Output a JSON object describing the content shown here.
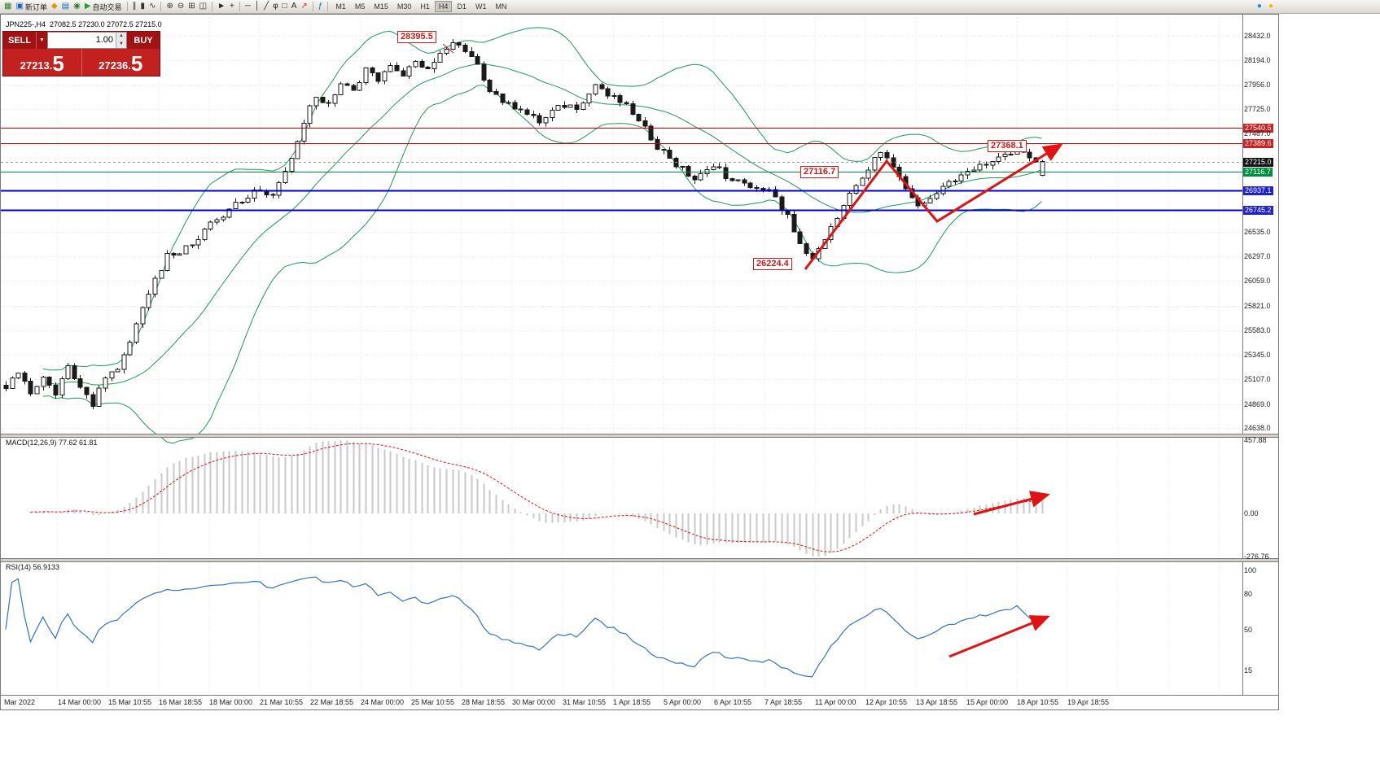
{
  "toolbar": {
    "items": [
      {
        "name": "new-chart-icon",
        "glyph": "▦",
        "color": "#2e7d32"
      },
      {
        "name": "new-order-button",
        "glyph": "▣",
        "color": "#1565c0",
        "label": "新订单"
      },
      {
        "name": "market-watch-icon",
        "glyph": "◆",
        "color": "#d69b00"
      },
      {
        "name": "data-window-icon",
        "glyph": "▤",
        "color": "#1565c0"
      },
      {
        "name": "strategy-tester-icon",
        "glyph": "◉",
        "color": "#2e7d32"
      },
      {
        "name": "auto-trading-button",
        "glyph": "▶",
        "color": "#21a038",
        "label": "自动交易"
      },
      {
        "type": "sep"
      },
      {
        "name": "chart-bars-icon",
        "glyph": "∥",
        "color": "#333333"
      },
      {
        "name": "chart-candles-icon",
        "glyph": "▮",
        "color": "#333333"
      },
      {
        "name": "chart-line-icon",
        "glyph": "∿",
        "color": "#333333"
      },
      {
        "type": "sep"
      },
      {
        "name": "zoom-in-icon",
        "glyph": "⊕",
        "color": "#333333"
      },
      {
        "name": "zoom-out-icon",
        "glyph": "⊖",
        "color": "#333333"
      },
      {
        "name": "tile-windows-icon",
        "glyph": "⊞",
        "color": "#333333"
      },
      {
        "name": "cascade-windows-icon",
        "glyph": "◫",
        "color": "#333333"
      },
      {
        "type": "sep"
      },
      {
        "name": "cursor-icon",
        "glyph": "►",
        "color": "#222222"
      },
      {
        "name": "crosshair-icon",
        "glyph": "+",
        "color": "#222222"
      },
      {
        "type": "sep"
      },
      {
        "name": "hline-icon",
        "glyph": "─",
        "color": "#222222"
      },
      {
        "name": "vline-icon",
        "glyph": "│",
        "color": "#222222"
      },
      {
        "name": "trendline-icon",
        "glyph": "╱",
        "color": "#222222"
      },
      {
        "name": "fibonacci-icon",
        "glyph": "φ",
        "color": "#222222"
      },
      {
        "name": "shapes-icon",
        "glyph": "□",
        "color": "#222222"
      },
      {
        "name": "text-icon",
        "glyph": "A",
        "color": "#222222"
      },
      {
        "name": "arrows-icon",
        "glyph": "↗",
        "color": "#cc2222"
      },
      {
        "type": "sep"
      },
      {
        "name": "indicators-icon",
        "glyph": "ƒ",
        "color": "#1565c0"
      },
      {
        "type": "sep"
      }
    ],
    "timeframes": [
      "M1",
      "M5",
      "M15",
      "M30",
      "H1",
      "H4",
      "D1",
      "W1",
      "MN"
    ],
    "active_timeframe": "H4",
    "right_icons": [
      {
        "name": "community-icon",
        "glyph": "●",
        "color": "#1e88e5"
      },
      {
        "name": "alerts-icon",
        "glyph": "●",
        "color": "#f2b705"
      }
    ]
  },
  "chart_header": {
    "symbol": "JPN225-,H4",
    "ohlc": "27082.5 27230.0 27072.5 27215.0"
  },
  "trade_panel": {
    "sell_label": "SELL",
    "buy_label": "BUY",
    "volume": "1.00",
    "dropdown_glyph": "▼",
    "spinner_up": "▲",
    "spinner_down": "▼",
    "sell_price_small": "27213.",
    "sell_price_big": "5",
    "buy_price_small": "27236.",
    "buy_price_big": "5"
  },
  "price_axis": {
    "ticks": [
      {
        "text": "28432.0",
        "style": "plain"
      },
      {
        "text": "28194.0",
        "style": "plain"
      },
      {
        "text": "27956.0",
        "style": "plain"
      },
      {
        "text": "27725.0",
        "style": "plain"
      },
      {
        "text": "27540.5",
        "style": "red"
      },
      {
        "text": "27487.0",
        "style": "plain"
      },
      {
        "text": "27389.6",
        "style": "red"
      },
      {
        "text": "27215.0",
        "style": "current"
      },
      {
        "text": "27116.7",
        "style": "green"
      },
      {
        "text": "26937.1",
        "style": "blue"
      },
      {
        "text": "26745.2",
        "style": "blue"
      },
      {
        "text": "26535.0",
        "style": "plain"
      },
      {
        "text": "26297.0",
        "style": "plain"
      },
      {
        "text": "26059.0",
        "style": "plain"
      },
      {
        "text": "25821.0",
        "style": "plain"
      },
      {
        "text": "25583.0",
        "style": "plain"
      },
      {
        "text": "25345.0",
        "style": "plain"
      },
      {
        "text": "25107.0",
        "style": "plain"
      },
      {
        "text": "24869.0",
        "style": "plain"
      },
      {
        "text": "24638.0",
        "style": "plain"
      }
    ]
  },
  "macd": {
    "label": "MACD(12,26,9) 77.62 61.81",
    "axis": [
      "457.88",
      "0.00",
      "-276.76"
    ]
  },
  "rsi": {
    "label": "RSI(14) 56.9133",
    "axis": [
      "100",
      "80",
      "50",
      "15"
    ]
  },
  "chart_data": {
    "type": "candlestick",
    "symbol": "JPN225-",
    "timeframe": "H4",
    "title": "JPN225-,H4",
    "last_ohlc": {
      "open": 27082.5,
      "high": 27230.0,
      "low": 27072.5,
      "close": 27215.0
    },
    "current_price": 27215.0,
    "y_range": [
      24638.0,
      28432.0
    ],
    "x_tick_labels": [
      "Mar 2022",
      "14 Mar 00:00",
      "15 Mar 10:55",
      "16 Mar 18:55",
      "18 Mar 00:00",
      "21 Mar 10:55",
      "22 Mar 18:55",
      "24 Mar 00:00",
      "25 Mar 10:55",
      "28 Mar 18:55",
      "30 Mar 00:00",
      "31 Mar 10:55",
      "1 Apr 18:55",
      "5 Apr 00:00",
      "6 Apr 10:55",
      "7 Apr 18:55",
      "11 Apr 00:00",
      "12 Apr 10:55",
      "13 Apr 18:55",
      "15 Apr 00:00",
      "18 Apr 10:55",
      "19 Apr 18:55"
    ],
    "levels": [
      {
        "price": 27540.5,
        "color": "#cc0000",
        "width": 1
      },
      {
        "price": 27389.6,
        "color": "#cc0000",
        "width": 1
      },
      {
        "price": 27116.7,
        "color": "#00913f",
        "width": 1
      },
      {
        "price": 26937.1,
        "color": "#0000cc",
        "width": 2
      },
      {
        "price": 26745.2,
        "color": "#0000cc",
        "width": 2
      }
    ],
    "bollinger": {
      "period": 20,
      "deviation": 2,
      "color": "#1f9a58"
    },
    "candles": {
      "count": 168,
      "price_waypoints": [
        [
          0,
          25050
        ],
        [
          2,
          25200
        ],
        [
          4,
          24950
        ],
        [
          6,
          25150
        ],
        [
          8,
          24980
        ],
        [
          10,
          25220
        ],
        [
          12,
          25060
        ],
        [
          14,
          24870
        ],
        [
          16,
          25120
        ],
        [
          18,
          25230
        ],
        [
          20,
          25500
        ],
        [
          23,
          25950
        ],
        [
          26,
          26300
        ],
        [
          29,
          26380
        ],
        [
          32,
          26550
        ],
        [
          35,
          26700
        ],
        [
          38,
          26850
        ],
        [
          41,
          26950
        ],
        [
          43,
          26900
        ],
        [
          46,
          27250
        ],
        [
          48,
          27600
        ],
        [
          50,
          27850
        ],
        [
          52,
          27750
        ],
        [
          54,
          27950
        ],
        [
          56,
          27900
        ],
        [
          58,
          28100
        ],
        [
          60,
          28000
        ],
        [
          62,
          28120
        ],
        [
          64,
          28060
        ],
        [
          66,
          28180
        ],
        [
          68,
          28120
        ],
        [
          70,
          28250
        ],
        [
          72,
          28380
        ],
        [
          74,
          28300
        ],
        [
          76,
          28150
        ],
        [
          78,
          27900
        ],
        [
          80,
          27780
        ],
        [
          83,
          27700
        ],
        [
          86,
          27620
        ],
        [
          89,
          27780
        ],
        [
          92,
          27720
        ],
        [
          95,
          27930
        ],
        [
          97,
          27870
        ],
        [
          100,
          27760
        ],
        [
          103,
          27550
        ],
        [
          105,
          27350
        ],
        [
          108,
          27180
        ],
        [
          111,
          27060
        ],
        [
          114,
          27180
        ],
        [
          117,
          27020
        ],
        [
          120,
          26980
        ],
        [
          123,
          26920
        ],
        [
          126,
          26680
        ],
        [
          128,
          26400
        ],
        [
          130,
          26260
        ],
        [
          132,
          26480
        ],
        [
          135,
          26800
        ],
        [
          138,
          27080
        ],
        [
          141,
          27320
        ],
        [
          143,
          27150
        ],
        [
          145,
          26950
        ],
        [
          147,
          26780
        ],
        [
          149,
          26850
        ],
        [
          152,
          27000
        ],
        [
          155,
          27120
        ],
        [
          158,
          27200
        ],
        [
          161,
          27300
        ],
        [
          163,
          27340
        ],
        [
          165,
          27250
        ],
        [
          167,
          27215
        ]
      ]
    },
    "annotations": [
      {
        "text": "28395.5",
        "price": 28395.5
      },
      {
        "text": "27368.1",
        "price": 27368.1
      },
      {
        "text": "27116.7",
        "price": 27116.7
      },
      {
        "text": "26224.4",
        "price": 26224.4
      }
    ],
    "trend_arrows": [
      {
        "panel": "price",
        "points": [
          [
            988,
            313
          ],
          [
            1088,
            180
          ],
          [
            1150,
            254
          ],
          [
            1302,
            160
          ]
        ]
      },
      {
        "panel": "macd",
        "points": [
          [
            1195,
            614
          ],
          [
            1286,
            590
          ]
        ]
      },
      {
        "panel": "rsi",
        "points": [
          [
            1165,
            789
          ],
          [
            1286,
            740
          ]
        ]
      }
    ],
    "macd_data": {
      "params": "12,26,9",
      "main": 77.62,
      "signal": 61.81,
      "range": [
        -276.76,
        457.88
      ]
    },
    "rsi_data": {
      "period": 14,
      "value": 56.9133,
      "range": [
        0,
        100
      ]
    }
  }
}
